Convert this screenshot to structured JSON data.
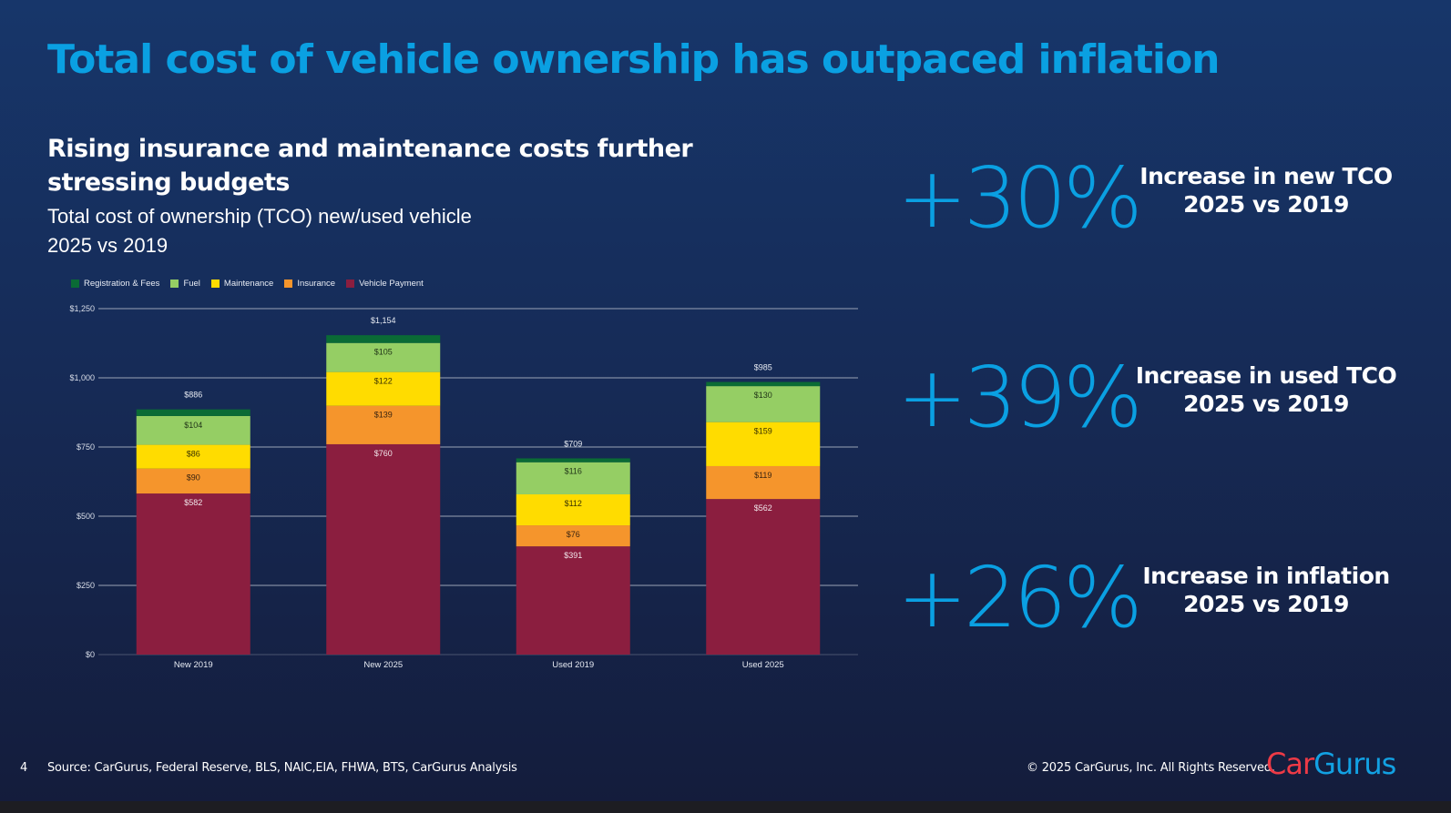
{
  "slide": {
    "title": "Total cost of vehicle ownership has outpaced inflation",
    "subtitle": "Rising insurance and maintenance costs further stressing budgets",
    "description_line1": "Total cost of ownership (TCO) new/used vehicle",
    "description_line2": "2025 vs 2019",
    "page_number": "4",
    "source": "Source: CarGurus, Federal Reserve, BLS, NAIC,EIA, FHWA, BTS, CarGurus Analysis",
    "copyright": "© 2025 CarGurus, Inc.  All Rights Reserved.",
    "logo_part1": "Car",
    "logo_part2": "Gurus",
    "colors": {
      "accent": "#0aa0e2",
      "logo_red": "#ee3a46",
      "logo_blue": "#12a1e3"
    }
  },
  "stats": [
    {
      "value": "+30%",
      "label_line1": "Increase in new TCO",
      "label_line2": "2025 vs  2019"
    },
    {
      "value": "+39%",
      "label_line1": "Increase in used TCO",
      "label_line2": "2025 vs 2019"
    },
    {
      "value": "+26%",
      "label_line1": "Increase in inflation",
      "label_line2": "2025 vs 2019"
    }
  ],
  "chart_data": {
    "type": "bar",
    "stacked": true,
    "title": "",
    "xlabel": "",
    "ylabel": "",
    "categories": [
      "New 2019",
      "New 2025",
      "Used 2019",
      "Used 2025"
    ],
    "ylim": [
      0,
      1250
    ],
    "yticks": [
      0,
      250,
      500,
      750,
      1000,
      1250
    ],
    "ytick_labels": [
      "$0",
      "$250",
      "$500",
      "$750",
      "$1,000",
      "$1,250"
    ],
    "grid": true,
    "legend_position": "top-left",
    "series": [
      {
        "name": "Vehicle Payment",
        "color": "#8b1e3f",
        "label_color": "#f0e6ea",
        "values": [
          582,
          760,
          391,
          562
        ],
        "labels": [
          "$582",
          "$760",
          "$391",
          "$562"
        ]
      },
      {
        "name": "Insurance",
        "color": "#f5952c",
        "label_color": "#3a2410",
        "values": [
          90,
          139,
          76,
          119
        ],
        "labels": [
          "$90",
          "$139",
          "$76",
          "$119"
        ]
      },
      {
        "name": "Maintenance",
        "color": "#ffdc00",
        "label_color": "#3a3300",
        "values": [
          86,
          122,
          112,
          159
        ],
        "labels": [
          "$86",
          "$122",
          "$112",
          "$159"
        ]
      },
      {
        "name": "Fuel",
        "color": "#95ce64",
        "label_color": "#1f3317",
        "values": [
          104,
          105,
          116,
          130
        ],
        "labels": [
          "$104",
          "$105",
          "$116",
          "$130"
        ]
      },
      {
        "name": "Registration & Fees",
        "color": "#0a6b35",
        "label_color": "#ffffff",
        "values": [
          24,
          28,
          14,
          15
        ],
        "labels": [
          "",
          "",
          "",
          ""
        ]
      }
    ],
    "legend_order": [
      "Registration & Fees",
      "Fuel",
      "Maintenance",
      "Insurance",
      "Vehicle Payment"
    ],
    "totals": [
      886,
      1154,
      709,
      985
    ],
    "total_labels": [
      "$886",
      "$1,154",
      "$709",
      "$985"
    ]
  }
}
